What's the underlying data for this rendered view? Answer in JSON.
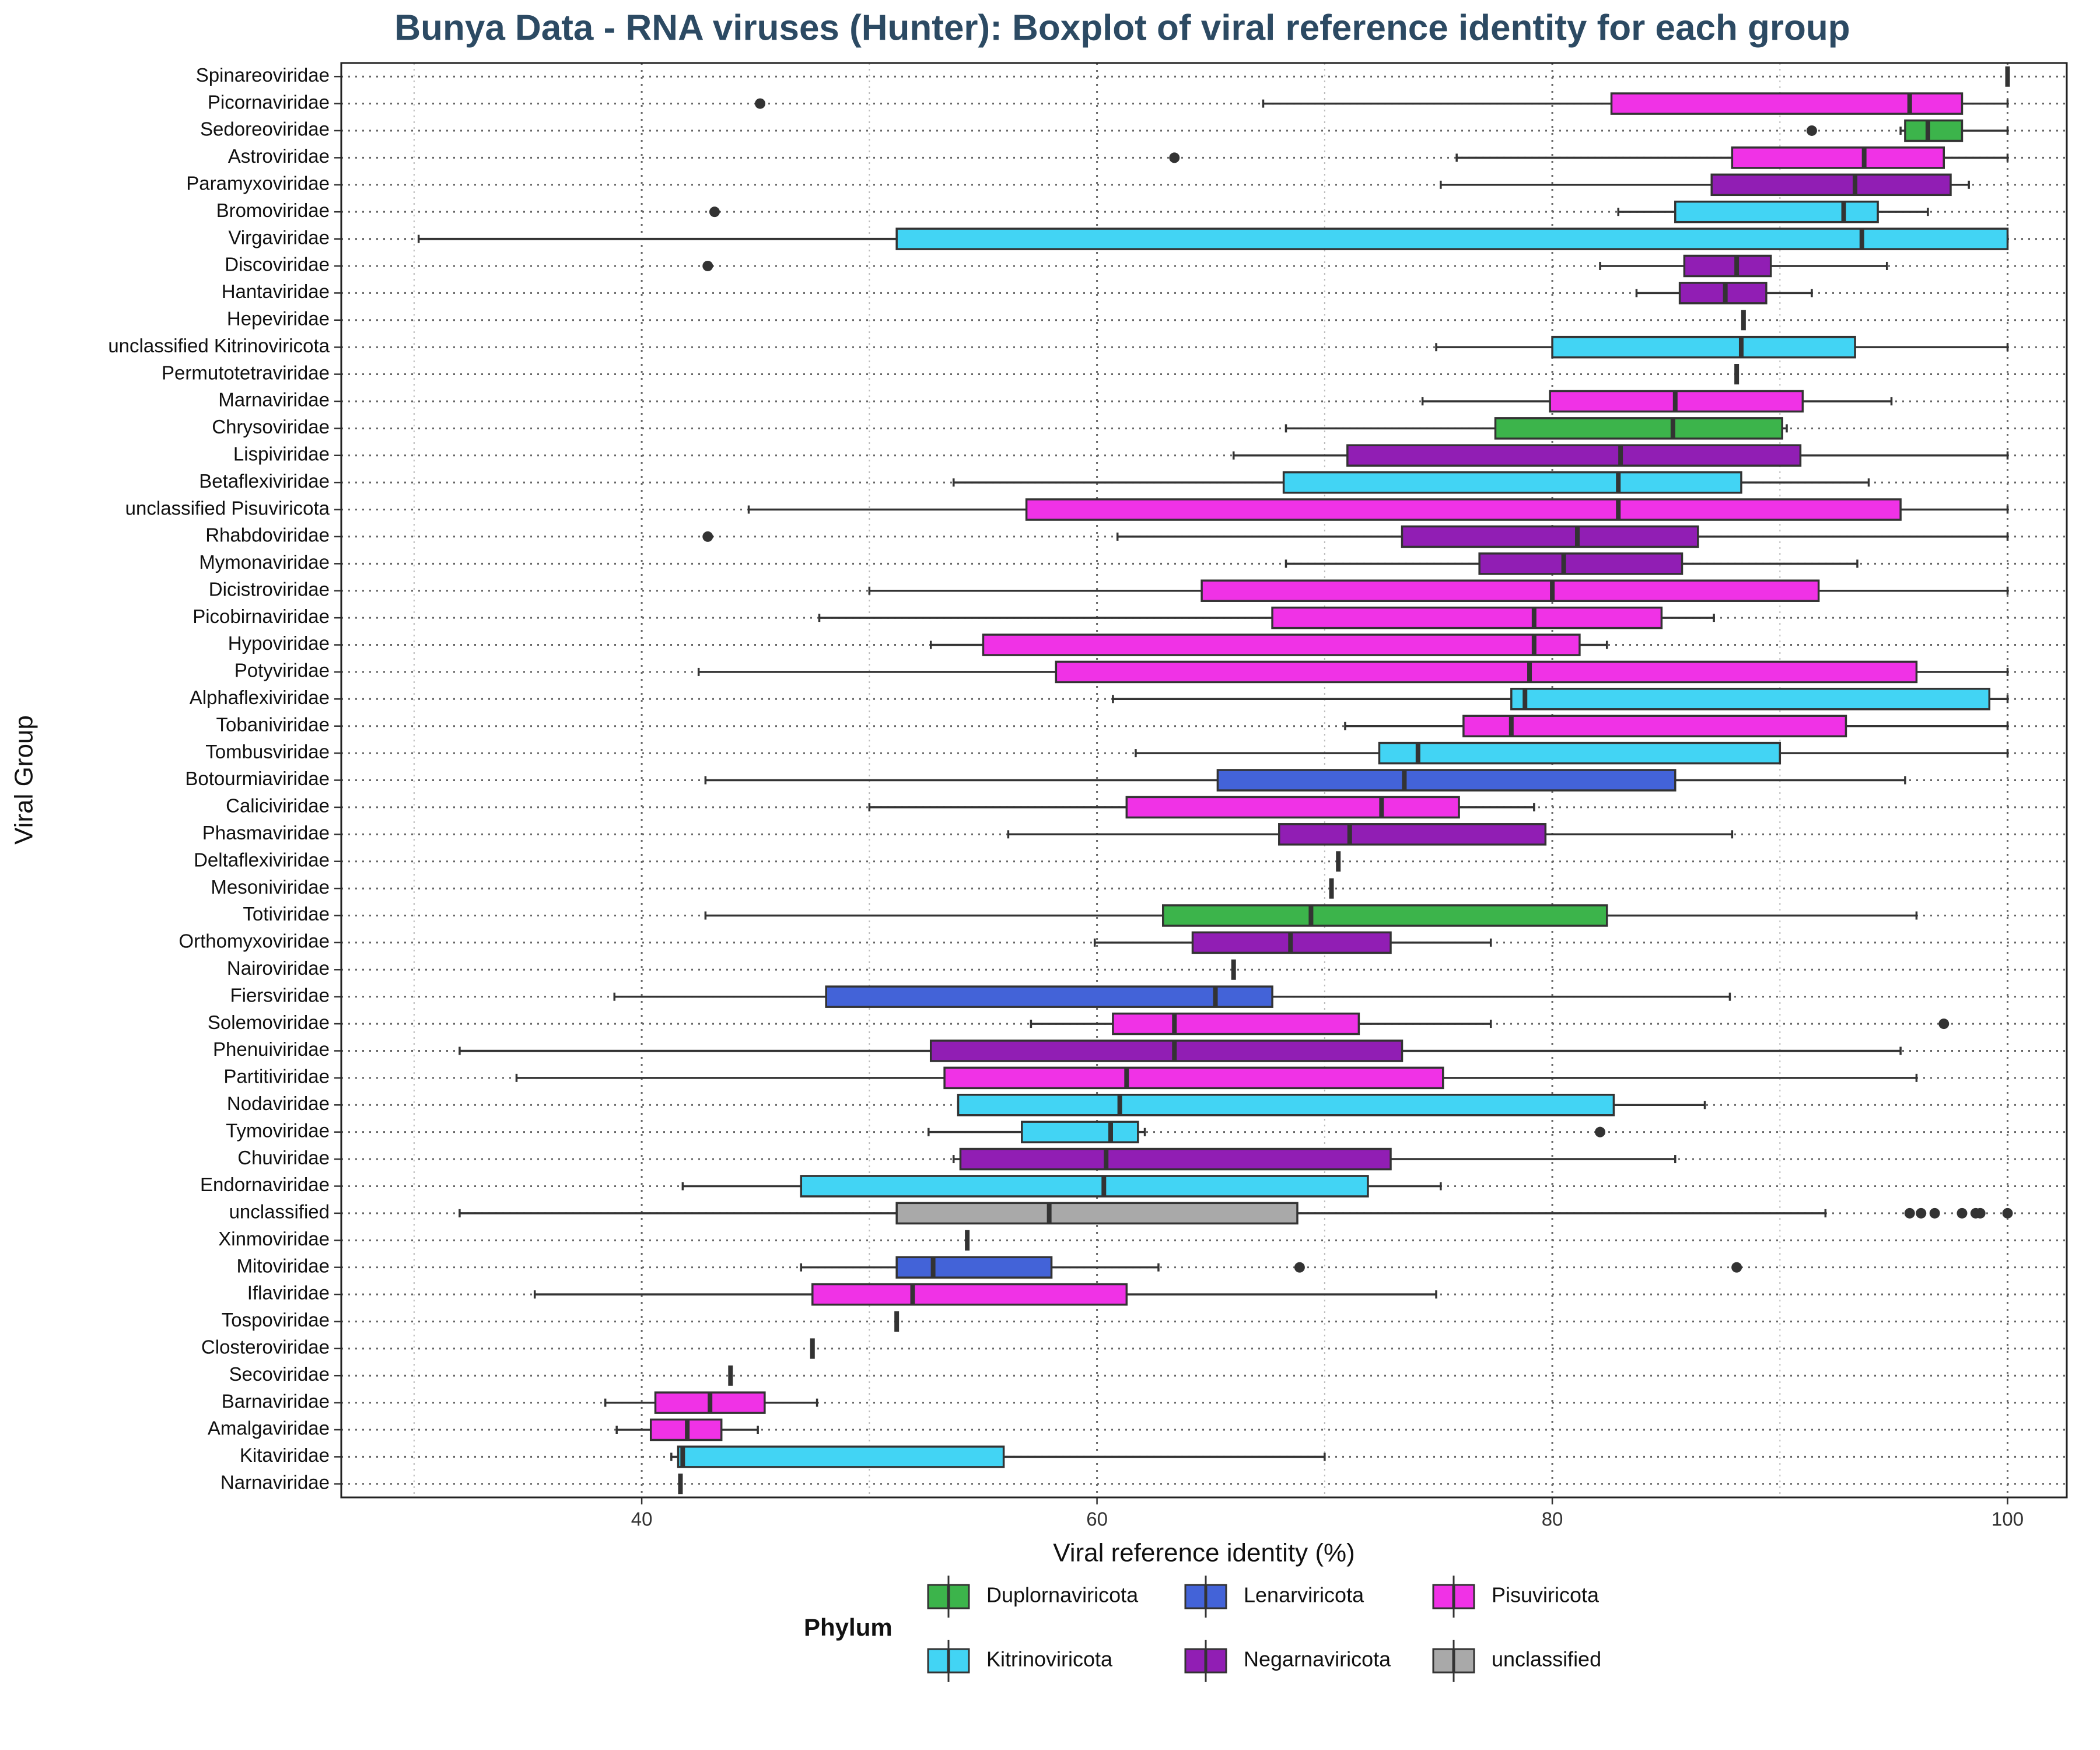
{
  "chart_data": {
    "type": "boxplot",
    "title": "Bunya Data - RNA viruses (Hunter): Boxplot of viral reference identity for each group",
    "x_label": "Viral reference identity (%)",
    "y_label": "Viral Group",
    "legend_title": "Phylum",
    "xlim": [
      26.8,
      102.6
    ],
    "xticks": [
      40,
      60,
      80,
      100
    ],
    "xminorticks": [
      30,
      50,
      70,
      90
    ],
    "grid": true,
    "legend_position": "bottom",
    "series": [
      {
        "name": "Duplornaviricota",
        "color": "#3cb44b"
      },
      {
        "name": "Kitrinoviricota",
        "color": "#42d4f4"
      },
      {
        "name": "Lenarviricota",
        "color": "#4363d8"
      },
      {
        "name": "Negarnaviricota",
        "color": "#911eb4"
      },
      {
        "name": "Pisuviricota",
        "color": "#f032e6"
      },
      {
        "name": "unclassified",
        "color": "#a9a9a9"
      }
    ],
    "categories": [
      "Spinareoviridae",
      "Picornaviridae",
      "Sedoreoviridae",
      "Astroviridae",
      "Paramyxoviridae",
      "Bromoviridae",
      "Virgaviridae",
      "Discoviridae",
      "Hantaviridae",
      "Hepeviridae",
      "unclassified Kitrinoviricota",
      "Permutotetraviridae",
      "Marnaviridae",
      "Chrysoviridae",
      "Lispiviridae",
      "Betaflexiviridae",
      "unclassified Pisuviricota",
      "Rhabdoviridae",
      "Mymonaviridae",
      "Dicistroviridae",
      "Picobirnaviridae",
      "Hypoviridae",
      "Potyviridae",
      "Alphaflexiviridae",
      "Tobaniviridae",
      "Tombusviridae",
      "Botourmiaviridae",
      "Caliciviridae",
      "Phasmaviridae",
      "Deltaflexiviridae",
      "Mesoniviridae",
      "Totiviridae",
      "Orthomyxoviridae",
      "Nairoviridae",
      "Fiersviridae",
      "Solemoviridae",
      "Phenuiviridae",
      "Partitiviridae",
      "Nodaviridae",
      "Tymoviridae",
      "Chuviridae",
      "Endornaviridae",
      "unclassified",
      "Xinmoviridae",
      "Mitoviridae",
      "Iflaviridae",
      "Tospoviridae",
      "Closteroviridae",
      "Secoviridae",
      "Barnaviridae",
      "Amalgaviridae",
      "Kitaviridae",
      "Narnaviridae"
    ],
    "boxes": [
      {
        "phylum": "Duplornaviricota",
        "low": 100,
        "q1": 100,
        "median": 100,
        "q3": 100,
        "high": 100
      },
      {
        "phylum": "Pisuviricota",
        "low": 67.3,
        "q1": 82.6,
        "median": 95.7,
        "q3": 98.0,
        "high": 100,
        "outliers": [
          45.2
        ]
      },
      {
        "phylum": "Duplornaviricota",
        "low": 95.3,
        "q1": 95.5,
        "median": 96.5,
        "q3": 98.0,
        "high": 100,
        "outliers": [
          91.4
        ]
      },
      {
        "phylum": "Pisuviricota",
        "low": 75.8,
        "q1": 87.9,
        "median": 93.7,
        "q3": 97.2,
        "high": 100,
        "outliers": [
          63.4
        ]
      },
      {
        "phylum": "Negarnaviricota",
        "low": 75.1,
        "q1": 87.0,
        "median": 93.3,
        "q3": 97.5,
        "high": 98.3
      },
      {
        "phylum": "Kitrinoviricota",
        "low": 82.9,
        "q1": 85.4,
        "median": 92.8,
        "q3": 94.3,
        "high": 96.5,
        "outliers": [
          43.2
        ]
      },
      {
        "phylum": "Kitrinoviricota",
        "low": 30.2,
        "q1": 51.2,
        "median": 93.6,
        "q3": 100,
        "high": 100
      },
      {
        "phylum": "Negarnaviricota",
        "low": 82.1,
        "q1": 85.8,
        "median": 88.1,
        "q3": 89.6,
        "high": 94.7,
        "outliers": [
          42.9
        ]
      },
      {
        "phylum": "Negarnaviricota",
        "low": 83.7,
        "q1": 85.6,
        "median": 87.6,
        "q3": 89.4,
        "high": 91.4
      },
      {
        "phylum": "Kitrinoviricota",
        "low": 88.4,
        "q1": 88.4,
        "median": 88.4,
        "q3": 88.4,
        "high": 88.4
      },
      {
        "phylum": "Kitrinoviricota",
        "low": 74.9,
        "q1": 80.0,
        "median": 88.3,
        "q3": 93.3,
        "high": 100
      },
      {
        "phylum": "Pisuviricota",
        "low": 88.1,
        "q1": 88.1,
        "median": 88.1,
        "q3": 88.1,
        "high": 88.1
      },
      {
        "phylum": "Pisuviricota",
        "low": 74.3,
        "q1": 79.9,
        "median": 85.4,
        "q3": 91.0,
        "high": 94.9
      },
      {
        "phylum": "Duplornaviricota",
        "low": 68.3,
        "q1": 77.5,
        "median": 85.3,
        "q3": 90.1,
        "high": 90.3
      },
      {
        "phylum": "Negarnaviricota",
        "low": 66.0,
        "q1": 71.0,
        "median": 83.0,
        "q3": 90.9,
        "high": 100
      },
      {
        "phylum": "Kitrinoviricota",
        "low": 53.7,
        "q1": 68.2,
        "median": 82.9,
        "q3": 88.3,
        "high": 93.9
      },
      {
        "phylum": "Pisuviricota",
        "low": 44.7,
        "q1": 56.9,
        "median": 82.9,
        "q3": 95.3,
        "high": 100
      },
      {
        "phylum": "Negarnaviricota",
        "low": 60.9,
        "q1": 73.4,
        "median": 81.1,
        "q3": 86.4,
        "high": 100,
        "outliers": [
          42.9
        ]
      },
      {
        "phylum": "Negarnaviricota",
        "low": 68.3,
        "q1": 76.8,
        "median": 80.5,
        "q3": 85.7,
        "high": 93.4
      },
      {
        "phylum": "Pisuviricota",
        "low": 50.0,
        "q1": 64.6,
        "median": 80.0,
        "q3": 91.7,
        "high": 100
      },
      {
        "phylum": "Pisuviricota",
        "low": 47.8,
        "q1": 67.7,
        "median": 79.2,
        "q3": 84.8,
        "high": 87.1
      },
      {
        "phylum": "Pisuviricota",
        "low": 52.7,
        "q1": 55.0,
        "median": 79.2,
        "q3": 81.2,
        "high": 82.4
      },
      {
        "phylum": "Pisuviricota",
        "low": 42.5,
        "q1": 58.2,
        "median": 79.0,
        "q3": 96.0,
        "high": 100
      },
      {
        "phylum": "Kitrinoviricota",
        "low": 60.7,
        "q1": 78.2,
        "median": 78.8,
        "q3": 99.2,
        "high": 100
      },
      {
        "phylum": "Pisuviricota",
        "low": 70.9,
        "q1": 76.1,
        "median": 78.2,
        "q3": 92.9,
        "high": 100
      },
      {
        "phylum": "Kitrinoviricota",
        "low": 61.7,
        "q1": 72.4,
        "median": 74.1,
        "q3": 90.0,
        "high": 100
      },
      {
        "phylum": "Lenarviricota",
        "low": 42.8,
        "q1": 65.3,
        "median": 73.5,
        "q3": 85.4,
        "high": 95.5
      },
      {
        "phylum": "Pisuviricota",
        "low": 50.0,
        "q1": 61.3,
        "median": 72.5,
        "q3": 75.9,
        "high": 79.2
      },
      {
        "phylum": "Negarnaviricota",
        "low": 56.1,
        "q1": 68.0,
        "median": 71.1,
        "q3": 79.7,
        "high": 87.9
      },
      {
        "phylum": "Kitrinoviricota",
        "low": 70.6,
        "q1": 70.6,
        "median": 70.6,
        "q3": 70.6,
        "high": 70.6
      },
      {
        "phylum": "Pisuviricota",
        "low": 70.3,
        "q1": 70.3,
        "median": 70.3,
        "q3": 70.3,
        "high": 70.3
      },
      {
        "phylum": "Duplornaviricota",
        "low": 42.8,
        "q1": 62.9,
        "median": 69.4,
        "q3": 82.4,
        "high": 96.0
      },
      {
        "phylum": "Negarnaviricota",
        "low": 59.9,
        "q1": 64.2,
        "median": 68.5,
        "q3": 72.9,
        "high": 77.3
      },
      {
        "phylum": "Negarnaviricota",
        "low": 66.0,
        "q1": 66.0,
        "median": 66.0,
        "q3": 66.0,
        "high": 66.0
      },
      {
        "phylum": "Lenarviricota",
        "low": 38.8,
        "q1": 48.1,
        "median": 65.2,
        "q3": 67.7,
        "high": 87.8
      },
      {
        "phylum": "Pisuviricota",
        "low": 57.1,
        "q1": 60.7,
        "median": 63.4,
        "q3": 71.5,
        "high": 77.3,
        "outliers": [
          97.2
        ]
      },
      {
        "phylum": "Negarnaviricota",
        "low": 32.0,
        "q1": 52.7,
        "median": 63.4,
        "q3": 73.4,
        "high": 95.3
      },
      {
        "phylum": "Pisuviricota",
        "low": 34.5,
        "q1": 53.3,
        "median": 61.3,
        "q3": 75.2,
        "high": 96.0
      },
      {
        "phylum": "Kitrinoviricota",
        "low": 53.9,
        "q1": 53.9,
        "median": 61.0,
        "q3": 82.7,
        "high": 86.7
      },
      {
        "phylum": "Kitrinoviricota",
        "low": 52.6,
        "q1": 56.7,
        "median": 60.6,
        "q3": 61.8,
        "high": 62.1,
        "outliers": [
          82.1
        ]
      },
      {
        "phylum": "Negarnaviricota",
        "low": 53.7,
        "q1": 54.0,
        "median": 60.4,
        "q3": 72.9,
        "high": 85.4
      },
      {
        "phylum": "Kitrinoviricota",
        "low": 41.8,
        "q1": 47.0,
        "median": 60.3,
        "q3": 71.9,
        "high": 75.1
      },
      {
        "phylum": "unclassified",
        "low": 32.0,
        "q1": 51.2,
        "median": 57.9,
        "q3": 68.8,
        "high": 92.0,
        "outliers": [
          95.7,
          96.2,
          96.8,
          98.0,
          98.6,
          98.8,
          100
        ]
      },
      {
        "phylum": "Negarnaviricota",
        "low": 54.3,
        "q1": 54.3,
        "median": 54.3,
        "q3": 54.3,
        "high": 54.3
      },
      {
        "phylum": "Lenarviricota",
        "low": 47.0,
        "q1": 51.2,
        "median": 52.8,
        "q3": 58.0,
        "high": 62.7,
        "outliers": [
          68.9,
          88.1
        ]
      },
      {
        "phylum": "Pisuviricota",
        "low": 35.3,
        "q1": 47.5,
        "median": 51.9,
        "q3": 61.3,
        "high": 74.9
      },
      {
        "phylum": "Negarnaviricota",
        "low": 51.2,
        "q1": 51.2,
        "median": 51.2,
        "q3": 51.2,
        "high": 51.2
      },
      {
        "phylum": "Kitrinoviricota",
        "low": 47.5,
        "q1": 47.5,
        "median": 47.5,
        "q3": 47.5,
        "high": 47.5
      },
      {
        "phylum": "Pisuviricota",
        "low": 43.9,
        "q1": 43.9,
        "median": 43.9,
        "q3": 43.9,
        "high": 43.9
      },
      {
        "phylum": "Pisuviricota",
        "low": 38.4,
        "q1": 40.6,
        "median": 43.0,
        "q3": 45.4,
        "high": 47.7
      },
      {
        "phylum": "Pisuviricota",
        "low": 38.9,
        "q1": 40.4,
        "median": 42.0,
        "q3": 43.5,
        "high": 45.1
      },
      {
        "phylum": "Kitrinoviricota",
        "low": 41.3,
        "q1": 41.6,
        "median": 41.8,
        "q3": 55.9,
        "high": 70.0
      },
      {
        "phylum": "Lenarviricota",
        "low": 41.7,
        "q1": 41.7,
        "median": 41.7,
        "q3": 41.7,
        "high": 41.7
      }
    ]
  }
}
